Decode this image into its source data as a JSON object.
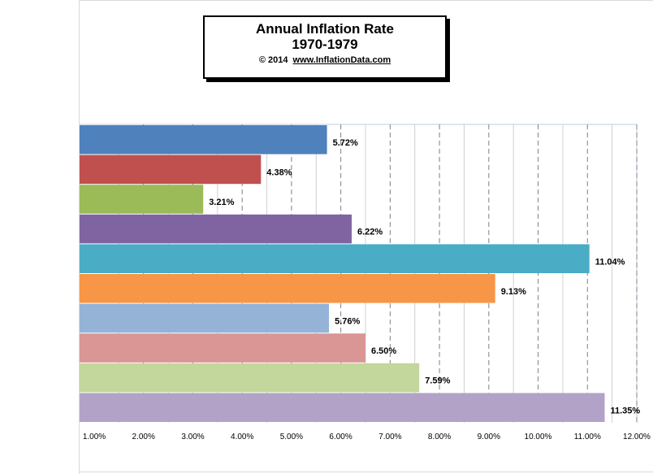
{
  "chart_data": {
    "type": "bar",
    "orientation": "horizontal",
    "title": "Annual Inflation Rate",
    "subtitle": "1970-1979",
    "credit_prefix": "© 2014",
    "credit_url": "www.InflationData.com",
    "values": [
      5.72,
      4.38,
      3.21,
      6.22,
      11.04,
      9.13,
      5.76,
      6.5,
      7.59,
      11.35
    ],
    "data_labels": [
      "5.72%",
      "4.38%",
      "3.21%",
      "6.22%",
      "11.04%",
      "9.13%",
      "5.76%",
      "6.50%",
      "7.59%",
      "11.35%"
    ],
    "colors": [
      "#4f81bd",
      "#c0504d",
      "#9bbb59",
      "#8064a2",
      "#4bacc6",
      "#f79646",
      "#95b3d7",
      "#d99694",
      "#c3d69b",
      "#b3a2c7"
    ],
    "xlim": [
      1,
      12
    ],
    "xticks": [
      "1.00%",
      "2.00%",
      "3.00%",
      "4.00%",
      "5.00%",
      "6.00%",
      "7.00%",
      "8.00%",
      "9.00%",
      "10.00%",
      "11.00%",
      "12.00%"
    ],
    "xlabel": "",
    "ylabel": "",
    "grid": "vertical dashed",
    "legend": "none"
  }
}
